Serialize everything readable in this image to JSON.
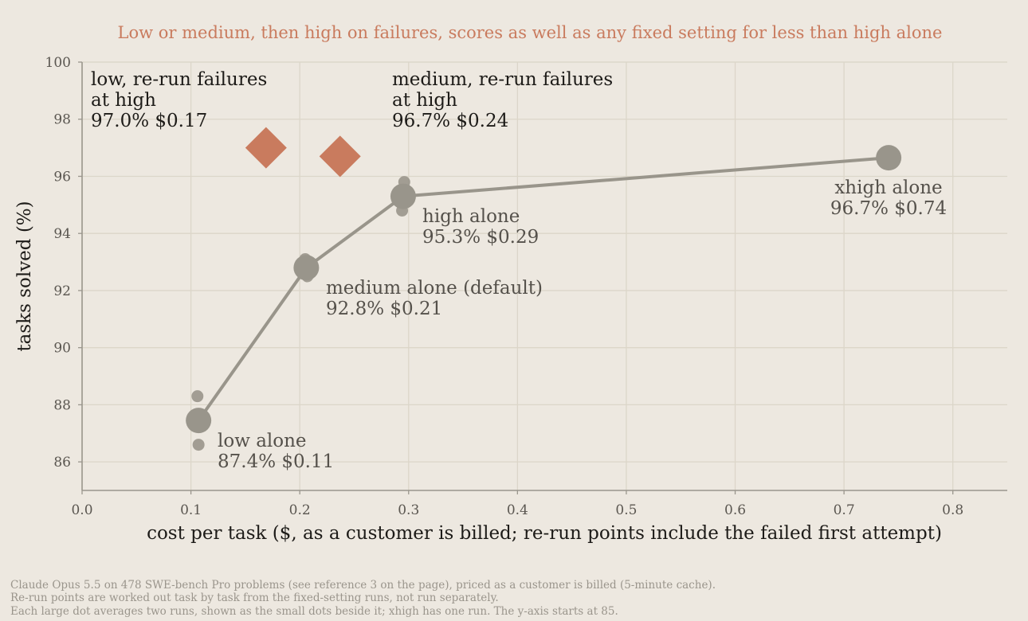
{
  "chart_data": {
    "type": "scatter",
    "title": "Low or medium, then high on failures, scores as well as any fixed setting for less than high alone",
    "xlabel": "cost per task ($, as a customer is billed; re-run points include the failed first attempt)",
    "ylabel": "tasks solved (%)",
    "xlim": [
      0,
      0.85
    ],
    "ylim": [
      85,
      100
    ],
    "x_ticks": [
      "0.0",
      "0.1",
      "0.2",
      "0.3",
      "0.4",
      "0.5",
      "0.6",
      "0.7",
      "0.8"
    ],
    "y_ticks": [
      "86",
      "88",
      "90",
      "92",
      "94",
      "96",
      "98",
      "100"
    ],
    "grid": true,
    "colors": {
      "fixed": "#99958b",
      "rerun": "#c97b5e",
      "title": "#c97b5e"
    },
    "fixed_settings": [
      {
        "label": "low alone",
        "value_text": "87.4%  $0.11",
        "x": 0.107,
        "y": 87.45,
        "runs": [
          {
            "x": 0.106,
            "y": 88.3
          },
          {
            "x": 0.107,
            "y": 86.6
          }
        ]
      },
      {
        "label": "medium alone (default)",
        "value_text": "92.8%  $0.21",
        "x": 0.206,
        "y": 92.8,
        "runs": [
          {
            "x": 0.205,
            "y": 93.1
          },
          {
            "x": 0.207,
            "y": 92.5
          }
        ]
      },
      {
        "label": "high alone",
        "value_text": "95.3%  $0.29",
        "x": 0.295,
        "y": 95.3,
        "runs": [
          {
            "x": 0.296,
            "y": 95.8
          },
          {
            "x": 0.294,
            "y": 94.8
          }
        ]
      },
      {
        "label": "xhigh alone",
        "value_text": "96.7%  $0.74",
        "x": 0.741,
        "y": 96.65,
        "runs": []
      }
    ],
    "rerun_strategies": [
      {
        "label_lines": [
          "low, re-run failures",
          "at high"
        ],
        "value_text": "97.0%  $0.17",
        "x": 0.169,
        "y": 97.0
      },
      {
        "label_lines": [
          "medium, re-run failures",
          "at high"
        ],
        "value_text": "96.7%  $0.24",
        "x": 0.237,
        "y": 96.7
      }
    ]
  },
  "footnotes": [
    "Claude Opus 5.5 on 478 SWE-bench Pro problems (see reference 3 on the page), priced as a customer is billed (5-minute cache).",
    "Re-run points are worked out task by task from the fixed-setting runs, not run separately.",
    "Each large dot averages two runs, shown as the small dots beside it; xhigh has one run. The y-axis starts at 85."
  ]
}
